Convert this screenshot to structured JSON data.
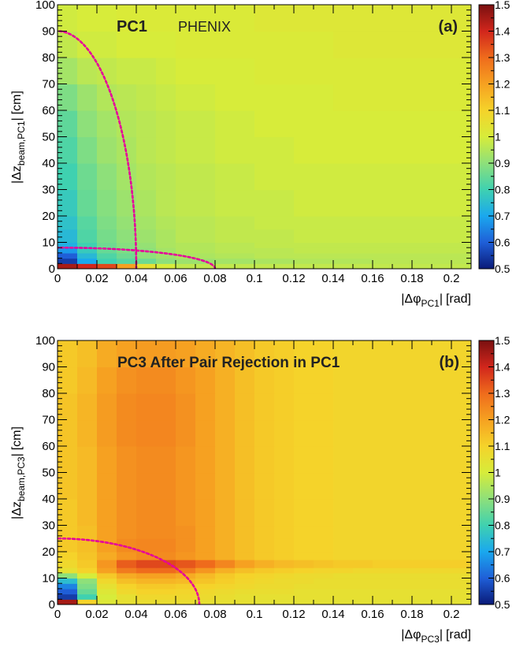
{
  "colorbar": {
    "min": 0.5,
    "max": 1.5,
    "tick_labels": [
      "1.5",
      "1.4",
      "1.3",
      "1.2",
      "1.1",
      "1",
      "0.9",
      "0.8",
      "0.7",
      "0.6",
      "0.5"
    ]
  },
  "chart_data": [
    {
      "type": "heatmap",
      "panel_label": "(a)",
      "title": "PC1",
      "experiment_label": "PHENIX",
      "xlabel": {
        "prefix": "|Δφ",
        "sub": "PC1",
        "unit": "[rad]"
      },
      "ylabel": {
        "prefix": "|Δz",
        "sub": "beam,PC1",
        "unit": "[cm]"
      },
      "xlim": [
        0,
        0.21
      ],
      "ylim": [
        0,
        100
      ],
      "x_tick_labels": [
        "0",
        "0.02",
        "0.04",
        "0.06",
        "0.08",
        "0.1",
        "0.12",
        "0.14",
        "0.16",
        "0.18",
        "0.2"
      ],
      "y_tick_labels": [
        "0",
        "10",
        "20",
        "30",
        "40",
        "50",
        "60",
        "70",
        "80",
        "90",
        "100"
      ],
      "z_range": [
        0.5,
        1.5
      ],
      "x_bin_edges": [
        0,
        0.01,
        0.02,
        0.03,
        0.04,
        0.05,
        0.06,
        0.08,
        0.1,
        0.12,
        0.14,
        0.16,
        0.18,
        0.2,
        0.21
      ],
      "y_bin_edges": [
        0,
        2,
        4,
        6,
        8,
        10,
        15,
        20,
        30,
        40,
        50,
        60,
        70,
        80,
        90,
        100
      ],
      "z": [
        [
          1.45,
          1.4,
          1.35,
          1.2,
          1.05,
          1.0,
          0.97,
          0.97,
          0.97,
          0.97,
          0.97,
          0.97,
          0.97,
          0.97
        ],
        [
          0.55,
          0.7,
          0.8,
          0.83,
          0.86,
          0.9,
          0.92,
          0.93,
          0.94,
          0.95,
          0.95,
          0.96,
          0.96,
          0.96
        ],
        [
          0.6,
          0.74,
          0.82,
          0.86,
          0.9,
          0.92,
          0.94,
          0.95,
          0.96,
          0.96,
          0.96,
          0.96,
          0.96,
          0.96
        ],
        [
          0.68,
          0.78,
          0.85,
          0.88,
          0.9,
          0.93,
          0.95,
          0.96,
          0.96,
          0.97,
          0.97,
          0.97,
          0.97,
          0.97
        ],
        [
          0.72,
          0.8,
          0.86,
          0.89,
          0.91,
          0.94,
          0.95,
          0.96,
          0.97,
          0.97,
          0.97,
          0.97,
          0.97,
          0.97
        ],
        [
          0.74,
          0.82,
          0.87,
          0.9,
          0.92,
          0.94,
          0.96,
          0.97,
          0.97,
          0.98,
          0.98,
          0.98,
          0.98,
          0.98
        ],
        [
          0.76,
          0.83,
          0.88,
          0.91,
          0.93,
          0.95,
          0.96,
          0.97,
          0.98,
          0.98,
          0.98,
          0.98,
          0.98,
          0.98
        ],
        [
          0.78,
          0.85,
          0.89,
          0.92,
          0.94,
          0.96,
          0.97,
          0.98,
          0.98,
          0.99,
          0.99,
          0.99,
          0.99,
          0.99
        ],
        [
          0.8,
          0.86,
          0.9,
          0.93,
          0.95,
          0.96,
          0.97,
          0.98,
          0.99,
          0.99,
          0.99,
          0.99,
          0.99,
          0.99
        ],
        [
          0.82,
          0.88,
          0.92,
          0.94,
          0.96,
          0.97,
          0.98,
          0.99,
          0.99,
          1.0,
          1.0,
          1.0,
          1.0,
          1.0
        ],
        [
          0.84,
          0.9,
          0.93,
          0.95,
          0.96,
          0.97,
          0.98,
          0.99,
          1.0,
          1.0,
          1.0,
          1.0,
          1.0,
          1.0
        ],
        [
          0.88,
          0.92,
          0.95,
          0.96,
          0.97,
          0.98,
          0.99,
          1.0,
          1.0,
          1.0,
          1.01,
          1.01,
          1.01,
          1.01
        ],
        [
          0.93,
          0.96,
          0.97,
          0.98,
          0.98,
          0.99,
          1.0,
          1.0,
          1.01,
          1.01,
          1.01,
          1.01,
          1.01,
          1.01
        ],
        [
          0.97,
          0.99,
          0.99,
          1.0,
          1.0,
          1.0,
          1.01,
          1.01,
          1.01,
          1.01,
          1.02,
          1.02,
          1.02,
          1.02
        ],
        [
          0.99,
          1.0,
          1.0,
          1.01,
          1.01,
          1.01,
          1.01,
          1.01,
          1.02,
          1.02,
          1.02,
          1.02,
          1.02,
          1.02
        ]
      ],
      "cut_ellipses": [
        {
          "rx": 0.04,
          "ry": 90
        },
        {
          "rx": 0.08,
          "ry": 8
        }
      ],
      "cut_color": "#e6009b"
    },
    {
      "type": "heatmap",
      "panel_label": "(b)",
      "title": "PC3 After Pair Rejection in PC1",
      "xlabel": {
        "prefix": "|Δφ",
        "sub": "PC3",
        "unit": "[rad]"
      },
      "ylabel": {
        "prefix": "|Δz",
        "sub": "beam,PC3",
        "unit": "[cm]"
      },
      "xlim": [
        0,
        0.21
      ],
      "ylim": [
        0,
        100
      ],
      "x_tick_labels": [
        "0",
        "0.02",
        "0.04",
        "0.06",
        "0.08",
        "0.1",
        "0.12",
        "0.14",
        "0.16",
        "0.18",
        "0.2"
      ],
      "y_tick_labels": [
        "0",
        "10",
        "20",
        "30",
        "40",
        "50",
        "60",
        "70",
        "80",
        "90",
        "100"
      ],
      "z_range": [
        0.5,
        1.5
      ],
      "x_bin_edges": [
        0,
        0.01,
        0.02,
        0.03,
        0.04,
        0.05,
        0.06,
        0.07,
        0.08,
        0.09,
        0.1,
        0.11,
        0.12,
        0.13,
        0.14,
        0.15,
        0.16,
        0.17,
        0.18,
        0.19,
        0.2,
        0.21
      ],
      "y_bin_edges": [
        0,
        2,
        4,
        6,
        8,
        10,
        12,
        14,
        17,
        20,
        25,
        30,
        40,
        50,
        60,
        70,
        80,
        90,
        100
      ],
      "z": [
        [
          1.45,
          1.1,
          1.02,
          1.05,
          1.06,
          1.06,
          1.06,
          1.05,
          1.05,
          1.05,
          1.04,
          1.04,
          1.04,
          1.04,
          1.04,
          1.04,
          1.04,
          1.04,
          1.04,
          1.04,
          1.04
        ],
        [
          0.55,
          0.8,
          1.0,
          1.05,
          1.08,
          1.08,
          1.08,
          1.07,
          1.06,
          1.05,
          1.05,
          1.05,
          1.05,
          1.05,
          1.05,
          1.05,
          1.05,
          1.05,
          1.05,
          1.05,
          1.05
        ],
        [
          0.6,
          0.85,
          1.02,
          1.08,
          1.1,
          1.1,
          1.09,
          1.08,
          1.07,
          1.06,
          1.06,
          1.06,
          1.05,
          1.05,
          1.05,
          1.05,
          1.05,
          1.05,
          1.05,
          1.05,
          1.05
        ],
        [
          0.65,
          0.88,
          1.05,
          1.1,
          1.12,
          1.12,
          1.11,
          1.1,
          1.09,
          1.08,
          1.07,
          1.07,
          1.06,
          1.06,
          1.06,
          1.06,
          1.06,
          1.06,
          1.06,
          1.06,
          1.06
        ],
        [
          0.75,
          0.9,
          1.08,
          1.14,
          1.16,
          1.16,
          1.15,
          1.13,
          1.11,
          1.09,
          1.08,
          1.07,
          1.07,
          1.06,
          1.06,
          1.06,
          1.06,
          1.06,
          1.06,
          1.06,
          1.06
        ],
        [
          0.9,
          1.0,
          1.12,
          1.18,
          1.2,
          1.2,
          1.18,
          1.15,
          1.12,
          1.1,
          1.09,
          1.08,
          1.07,
          1.07,
          1.06,
          1.06,
          1.06,
          1.06,
          1.06,
          1.06,
          1.06
        ],
        [
          1.05,
          1.1,
          1.2,
          1.27,
          1.3,
          1.3,
          1.27,
          1.22,
          1.17,
          1.14,
          1.12,
          1.11,
          1.1,
          1.09,
          1.09,
          1.08,
          1.08,
          1.08,
          1.08,
          1.08,
          1.08
        ],
        [
          1.08,
          1.12,
          1.22,
          1.32,
          1.35,
          1.35,
          1.33,
          1.3,
          1.25,
          1.2,
          1.17,
          1.15,
          1.14,
          1.13,
          1.12,
          1.12,
          1.11,
          1.11,
          1.11,
          1.11,
          1.11
        ],
        [
          1.1,
          1.13,
          1.18,
          1.22,
          1.24,
          1.24,
          1.22,
          1.2,
          1.17,
          1.14,
          1.12,
          1.11,
          1.1,
          1.1,
          1.09,
          1.09,
          1.09,
          1.09,
          1.09,
          1.09,
          1.09
        ],
        [
          1.12,
          1.14,
          1.2,
          1.24,
          1.25,
          1.25,
          1.23,
          1.2,
          1.17,
          1.14,
          1.12,
          1.11,
          1.1,
          1.1,
          1.09,
          1.09,
          1.09,
          1.09,
          1.09,
          1.09,
          1.09
        ],
        [
          1.12,
          1.14,
          1.2,
          1.23,
          1.24,
          1.24,
          1.23,
          1.2,
          1.17,
          1.14,
          1.12,
          1.11,
          1.1,
          1.1,
          1.09,
          1.09,
          1.09,
          1.09,
          1.09,
          1.09,
          1.09
        ],
        [
          1.12,
          1.15,
          1.2,
          1.23,
          1.24,
          1.24,
          1.22,
          1.2,
          1.17,
          1.14,
          1.12,
          1.11,
          1.1,
          1.1,
          1.09,
          1.09,
          1.09,
          1.09,
          1.09,
          1.09,
          1.09
        ],
        [
          1.13,
          1.15,
          1.2,
          1.23,
          1.24,
          1.24,
          1.22,
          1.2,
          1.17,
          1.14,
          1.12,
          1.11,
          1.1,
          1.1,
          1.09,
          1.09,
          1.09,
          1.09,
          1.09,
          1.09,
          1.09
        ],
        [
          1.13,
          1.15,
          1.2,
          1.23,
          1.24,
          1.24,
          1.22,
          1.2,
          1.17,
          1.14,
          1.12,
          1.11,
          1.1,
          1.1,
          1.09,
          1.09,
          1.09,
          1.09,
          1.09,
          1.09,
          1.09
        ],
        [
          1.13,
          1.16,
          1.21,
          1.24,
          1.25,
          1.25,
          1.23,
          1.2,
          1.17,
          1.14,
          1.12,
          1.11,
          1.1,
          1.1,
          1.09,
          1.09,
          1.09,
          1.09,
          1.09,
          1.09,
          1.09
        ],
        [
          1.13,
          1.16,
          1.21,
          1.24,
          1.25,
          1.25,
          1.23,
          1.2,
          1.17,
          1.14,
          1.12,
          1.11,
          1.1,
          1.1,
          1.09,
          1.09,
          1.09,
          1.09,
          1.09,
          1.09,
          1.09
        ],
        [
          1.12,
          1.15,
          1.2,
          1.23,
          1.24,
          1.24,
          1.22,
          1.2,
          1.17,
          1.14,
          1.12,
          1.11,
          1.1,
          1.1,
          1.09,
          1.09,
          1.09,
          1.09,
          1.09,
          1.09,
          1.09
        ],
        [
          1.12,
          1.14,
          1.18,
          1.2,
          1.21,
          1.21,
          1.2,
          1.18,
          1.16,
          1.14,
          1.12,
          1.11,
          1.1,
          1.1,
          1.09,
          1.09,
          1.09,
          1.09,
          1.09,
          1.09,
          1.09
        ]
      ],
      "cut_ellipses": [
        {
          "rx": 0.072,
          "ry": 25
        }
      ],
      "cut_color": "#e6009b"
    }
  ]
}
